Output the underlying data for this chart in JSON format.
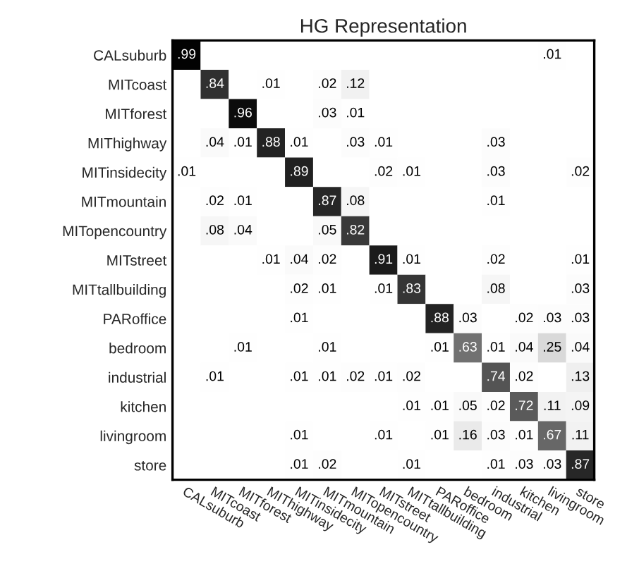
{
  "chart_data": {
    "type": "heatmap",
    "title": "HG Representation",
    "categories": [
      "CALsuburb",
      "MITcoast",
      "MITforest",
      "MIThighway",
      "MITinsidecity",
      "MITmountain",
      "MITopencountry",
      "MITstreet",
      "MITtallbuilding",
      "PARoffice",
      "bedroom",
      "industrial",
      "kitchen",
      "livingroom",
      "store"
    ],
    "y_categories": [
      "CALsuburb",
      "MITcoast",
      "MITforest",
      "MIThighway",
      "MITinsidecity",
      "MITmountain",
      "MITopencountry",
      "MITstreet",
      "MITtallbuilding",
      "PARoffice",
      "bedroom",
      "industrial",
      "kitchen",
      "livingroom",
      "store"
    ],
    "cells": [
      [
        0.99,
        null,
        null,
        null,
        null,
        null,
        null,
        null,
        null,
        null,
        null,
        null,
        null,
        0.01,
        null
      ],
      [
        null,
        0.84,
        null,
        0.01,
        null,
        0.02,
        0.12,
        null,
        null,
        null,
        null,
        null,
        null,
        null,
        null
      ],
      [
        null,
        null,
        0.96,
        null,
        null,
        0.03,
        0.01,
        null,
        null,
        null,
        null,
        null,
        null,
        null,
        null
      ],
      [
        null,
        0.04,
        0.01,
        0.88,
        0.01,
        null,
        0.03,
        0.01,
        null,
        null,
        null,
        0.03,
        null,
        null,
        null
      ],
      [
        0.01,
        null,
        null,
        null,
        0.89,
        null,
        null,
        0.02,
        0.01,
        null,
        null,
        0.03,
        null,
        null,
        0.02
      ],
      [
        null,
        0.02,
        0.01,
        null,
        null,
        0.87,
        0.08,
        null,
        null,
        null,
        null,
        0.01,
        null,
        null,
        null
      ],
      [
        null,
        0.08,
        0.04,
        null,
        null,
        0.05,
        0.82,
        null,
        null,
        null,
        null,
        null,
        null,
        null,
        null
      ],
      [
        null,
        null,
        null,
        0.01,
        0.04,
        0.02,
        null,
        0.91,
        0.01,
        null,
        null,
        0.02,
        null,
        null,
        0.01
      ],
      [
        null,
        null,
        null,
        null,
        0.02,
        0.01,
        null,
        0.01,
        0.83,
        null,
        null,
        0.08,
        null,
        null,
        0.03
      ],
      [
        null,
        null,
        null,
        null,
        0.01,
        null,
        null,
        null,
        null,
        0.88,
        0.03,
        null,
        0.02,
        0.03,
        0.03
      ],
      [
        null,
        null,
        0.01,
        null,
        null,
        0.01,
        null,
        null,
        null,
        0.01,
        0.63,
        0.01,
        0.04,
        0.25,
        0.04
      ],
      [
        null,
        0.01,
        null,
        null,
        0.01,
        0.01,
        0.02,
        0.01,
        0.02,
        null,
        null,
        0.74,
        0.02,
        null,
        0.13
      ],
      [
        null,
        null,
        null,
        null,
        null,
        null,
        null,
        null,
        0.01,
        0.01,
        0.05,
        0.02,
        0.72,
        0.11,
        0.09
      ],
      [
        null,
        null,
        null,
        null,
        0.01,
        null,
        null,
        0.01,
        null,
        0.01,
        0.16,
        0.03,
        0.01,
        0.67,
        0.11
      ],
      [
        null,
        null,
        null,
        null,
        0.01,
        0.02,
        null,
        null,
        0.01,
        null,
        null,
        0.01,
        0.03,
        0.03,
        0.87
      ]
    ],
    "cell_labels": [
      [
        ".99",
        null,
        null,
        null,
        null,
        null,
        null,
        null,
        null,
        null,
        null,
        null,
        null,
        ".01",
        null
      ],
      [
        null,
        ".84",
        null,
        ".01",
        null,
        ".02",
        ".12",
        null,
        null,
        null,
        null,
        null,
        null,
        null,
        null
      ],
      [
        null,
        null,
        ".96",
        null,
        null,
        ".03",
        ".01",
        null,
        null,
        null,
        null,
        null,
        null,
        null,
        null
      ],
      [
        null,
        ".04",
        ".01",
        ".88",
        ".01",
        null,
        ".03",
        ".01",
        null,
        null,
        null,
        ".03",
        null,
        null,
        null
      ],
      [
        ".01",
        null,
        null,
        null,
        ".89",
        null,
        null,
        ".02",
        ".01",
        null,
        null,
        ".03",
        null,
        null,
        ".02"
      ],
      [
        null,
        ".02",
        ".01",
        null,
        null,
        ".87",
        ".08",
        null,
        null,
        null,
        null,
        ".01",
        null,
        null,
        null
      ],
      [
        null,
        ".08",
        ".04",
        null,
        null,
        ".05",
        ".82",
        null,
        null,
        null,
        null,
        null,
        null,
        null,
        null
      ],
      [
        null,
        null,
        null,
        ".01",
        ".04",
        ".02",
        null,
        ".91",
        ".01",
        null,
        null,
        ".02",
        null,
        null,
        ".01"
      ],
      [
        null,
        null,
        null,
        null,
        ".02",
        ".01",
        null,
        ".01",
        ".83",
        null,
        null,
        ".08",
        null,
        null,
        ".03"
      ],
      [
        null,
        null,
        null,
        null,
        ".01",
        null,
        null,
        null,
        null,
        ".88",
        ".03",
        null,
        ".02",
        ".03",
        ".03"
      ],
      [
        null,
        null,
        ".01",
        null,
        null,
        ".01",
        null,
        null,
        null,
        ".01",
        ".63",
        ".01",
        ".04",
        ".25",
        ".04"
      ],
      [
        null,
        ".01",
        null,
        null,
        ".01",
        ".01",
        ".02",
        ".01",
        ".02",
        null,
        null,
        ".74",
        ".02",
        null,
        ".13"
      ],
      [
        null,
        null,
        null,
        null,
        null,
        null,
        null,
        null,
        ".01",
        ".01",
        ".05",
        ".02",
        ".72",
        ".11",
        ".09"
      ],
      [
        null,
        null,
        null,
        null,
        ".01",
        null,
        null,
        ".01",
        null,
        ".01",
        ".16",
        ".03",
        ".01",
        ".67",
        ".11"
      ],
      [
        null,
        null,
        null,
        null,
        ".01",
        ".02",
        null,
        null,
        ".01",
        null,
        null,
        ".01",
        ".03",
        ".03",
        ".87"
      ]
    ]
  }
}
